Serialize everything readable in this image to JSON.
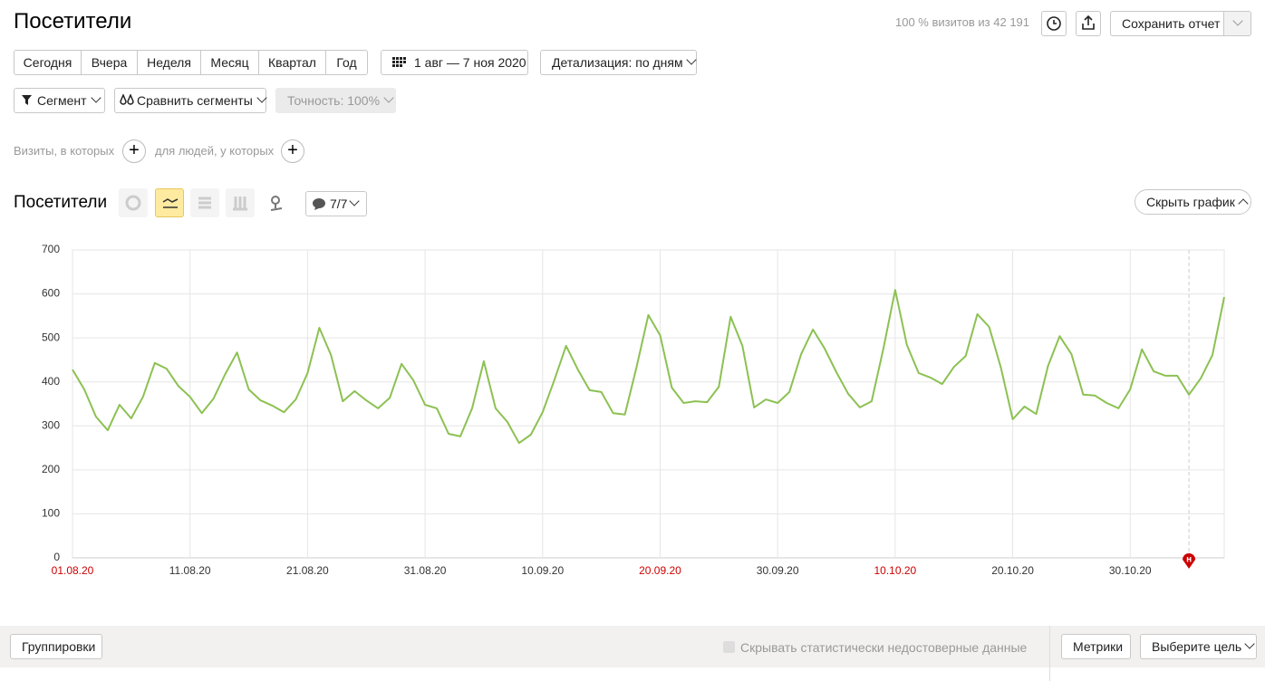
{
  "header": {
    "title": "Посетители",
    "sample": "100 % визитов из 42 191",
    "save": "Сохранить отчет"
  },
  "periods": [
    "Сегодня",
    "Вчера",
    "Неделя",
    "Месяц",
    "Квартал",
    "Год"
  ],
  "date_range": "1 авг — 7 ноя 2020",
  "detail": "Детализация: по дням",
  "segment": "Сегмент",
  "compare": "Сравнить сегменты",
  "accuracy": "Точность: 100%",
  "filters": {
    "visits": "Визиты, в которых",
    "people": "для людей, у которых"
  },
  "chart_header": {
    "title": "Посетители",
    "notes": "7/7",
    "hide": "Скрыть график"
  },
  "footer": {
    "groupings": "Группировки",
    "hide_unreliable": "Скрывать статистически недостоверные данные",
    "metrics": "Метрики",
    "goal": "Выберите цель"
  },
  "chart_data": {
    "type": "line",
    "categories": [
      "01.08.20",
      null,
      null,
      null,
      null,
      null,
      null,
      null,
      null,
      null,
      "11.08.20",
      null,
      null,
      null,
      null,
      null,
      null,
      null,
      null,
      null,
      "21.08.20",
      null,
      null,
      null,
      null,
      null,
      null,
      null,
      null,
      null,
      "31.08.20",
      null,
      null,
      null,
      null,
      null,
      null,
      null,
      null,
      null,
      "10.09.20",
      null,
      null,
      null,
      null,
      null,
      null,
      null,
      null,
      null,
      "20.09.20",
      null,
      null,
      null,
      null,
      null,
      null,
      null,
      null,
      null,
      "30.09.20",
      null,
      null,
      null,
      null,
      null,
      null,
      null,
      null,
      null,
      "10.10.20",
      null,
      null,
      null,
      null,
      null,
      null,
      null,
      null,
      null,
      "20.10.20",
      null,
      null,
      null,
      null,
      null,
      null,
      null,
      null,
      null,
      "30.10.20",
      null,
      null,
      null,
      null,
      null,
      null,
      null,
      null
    ],
    "values": [
      428,
      383,
      321,
      290,
      348,
      317,
      366,
      443,
      430,
      391,
      366,
      329,
      362,
      418,
      467,
      383,
      358,
      346,
      331,
      360,
      420,
      523,
      461,
      356,
      379,
      358,
      340,
      364,
      441,
      404,
      348,
      340,
      282,
      276,
      340,
      447,
      340,
      309,
      261,
      280,
      331,
      404,
      482,
      428,
      381,
      377,
      329,
      326,
      434,
      552,
      506,
      387,
      352,
      356,
      354,
      389,
      548,
      482,
      342,
      360,
      352,
      377,
      463,
      519,
      476,
      422,
      373,
      342,
      356,
      476,
      609,
      484,
      420,
      410,
      395,
      434,
      459,
      554,
      525,
      432,
      315,
      344,
      327,
      436,
      504,
      463,
      371,
      369,
      352,
      340,
      383,
      474,
      424,
      414,
      414,
      371,
      408,
      461,
      593
    ],
    "color": "#8cc152",
    "ylim": [
      0,
      700
    ],
    "yticks": [
      0,
      100,
      200,
      300,
      400,
      500,
      600,
      700
    ],
    "grid": true,
    "label_color": "#333333",
    "weekend_label_color": "#cc0000",
    "weekend_labels": [
      0,
      50,
      70
    ],
    "annotation": {
      "at": 95,
      "text": "н",
      "color": "#cc0000"
    }
  }
}
